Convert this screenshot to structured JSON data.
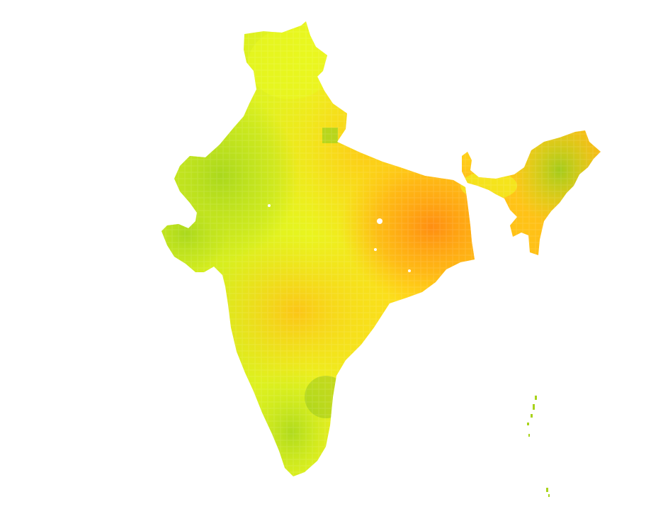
{
  "map": {
    "type": "choropleth-heatmap",
    "region": "India",
    "legend": null,
    "title": "",
    "color_scale": {
      "low": "#9fd11a",
      "mid_low": "#d8f21e",
      "mid": "#ffe11c",
      "mid_high": "#ffc012",
      "high": "#ff8c10"
    }
  }
}
